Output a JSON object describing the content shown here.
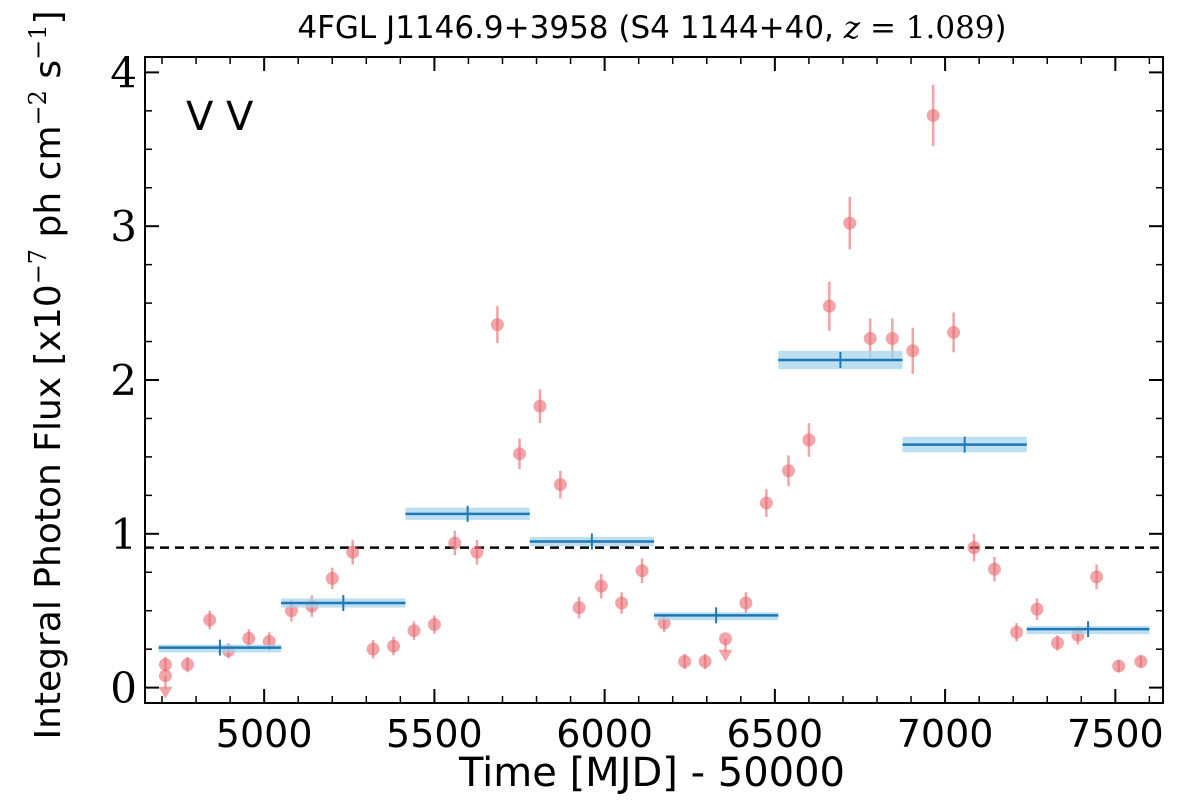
{
  "chart_data": {
    "type": "scatter",
    "title": {
      "prefix": "4FGL J1146.9+3958 (S4 1144+40, ",
      "z_symbol": "z",
      "equals": " = ",
      "z_value": "1.089",
      "suffix": ")"
    },
    "xlabel": "Time [MJD] - 50000",
    "ylabel": {
      "before": "Integral Photon Flux [x10",
      "exp": "−7",
      "middle": " ph cm",
      "exp2": "−2",
      "space": " s",
      "exp3": "−1",
      "after": "]"
    },
    "xlim": [
      4650,
      7640
    ],
    "ylim": [
      -0.1,
      4.1
    ],
    "xticks": [
      5000,
      5500,
      6000,
      6500,
      7000,
      7500
    ],
    "yticks": [
      0,
      1,
      2,
      3,
      4
    ],
    "legend_marks": [
      {
        "text": "V",
        "color": "#1f77b4"
      },
      {
        "text": "V",
        "color": "#d62728"
      }
    ],
    "mean_flux": 0.91,
    "colors": {
      "points": "#e8696e",
      "blocks": "#1f77b4",
      "block_band": "#a6d6ee",
      "mean_line": "#000000"
    },
    "series": [
      {
        "type": "scatter",
        "points": [
          [
            4710,
            0.15,
            0.05
          ],
          [
            4775,
            0.15,
            0.05
          ],
          [
            4840,
            0.44,
            0.06
          ],
          [
            4895,
            0.24,
            0.05
          ],
          [
            4955,
            0.32,
            0.06
          ],
          [
            5015,
            0.3,
            0.06
          ],
          [
            5080,
            0.5,
            0.07
          ],
          [
            5140,
            0.53,
            0.07
          ],
          [
            5200,
            0.71,
            0.07
          ],
          [
            5260,
            0.88,
            0.08
          ],
          [
            5320,
            0.25,
            0.06
          ],
          [
            5380,
            0.27,
            0.06
          ],
          [
            5440,
            0.37,
            0.06
          ],
          [
            5500,
            0.41,
            0.06
          ],
          [
            5560,
            0.94,
            0.08
          ],
          [
            5625,
            0.88,
            0.08
          ],
          [
            5685,
            2.36,
            0.12
          ],
          [
            5750,
            1.52,
            0.1
          ],
          [
            5810,
            1.83,
            0.11
          ],
          [
            5870,
            1.32,
            0.09
          ],
          [
            5925,
            0.52,
            0.07
          ],
          [
            5990,
            0.66,
            0.08
          ],
          [
            6050,
            0.55,
            0.07
          ],
          [
            6110,
            0.76,
            0.08
          ],
          [
            6175,
            0.42,
            0.06
          ],
          [
            6235,
            0.17,
            0.05
          ],
          [
            6295,
            0.17,
            0.05
          ],
          [
            6415,
            0.55,
            0.07
          ],
          [
            6475,
            1.2,
            0.09
          ],
          [
            6540,
            1.41,
            0.1
          ],
          [
            6600,
            1.61,
            0.11
          ],
          [
            6660,
            2.48,
            0.16
          ],
          [
            6720,
            3.02,
            0.17
          ],
          [
            6780,
            2.27,
            0.13
          ],
          [
            6845,
            2.27,
            0.13
          ],
          [
            6905,
            2.19,
            0.15
          ],
          [
            6965,
            3.72,
            0.2
          ],
          [
            7025,
            2.31,
            0.13
          ],
          [
            7085,
            0.91,
            0.09
          ],
          [
            7145,
            0.77,
            0.08
          ],
          [
            7210,
            0.36,
            0.06
          ],
          [
            7270,
            0.51,
            0.07
          ],
          [
            7330,
            0.29,
            0.05
          ],
          [
            7390,
            0.34,
            0.06
          ],
          [
            7445,
            0.72,
            0.08
          ],
          [
            7510,
            0.14,
            0.04
          ],
          [
            7575,
            0.17,
            0.04
          ]
        ],
        "upper_limits": [
          [
            4710,
            -0.02
          ],
          [
            6355,
            0.22
          ]
        ]
      },
      {
        "type": "blocks",
        "blocks": [
          [
            4690,
            5050,
            0.26,
            0.02
          ],
          [
            5050,
            5415,
            0.55,
            0.03
          ],
          [
            5415,
            5780,
            1.13,
            0.04
          ],
          [
            5780,
            6145,
            0.95,
            0.03
          ],
          [
            6145,
            6510,
            0.47,
            0.02
          ],
          [
            6510,
            6875,
            2.13,
            0.06
          ],
          [
            6875,
            7240,
            1.58,
            0.05
          ],
          [
            7240,
            7600,
            0.38,
            0.02
          ]
        ]
      }
    ]
  }
}
